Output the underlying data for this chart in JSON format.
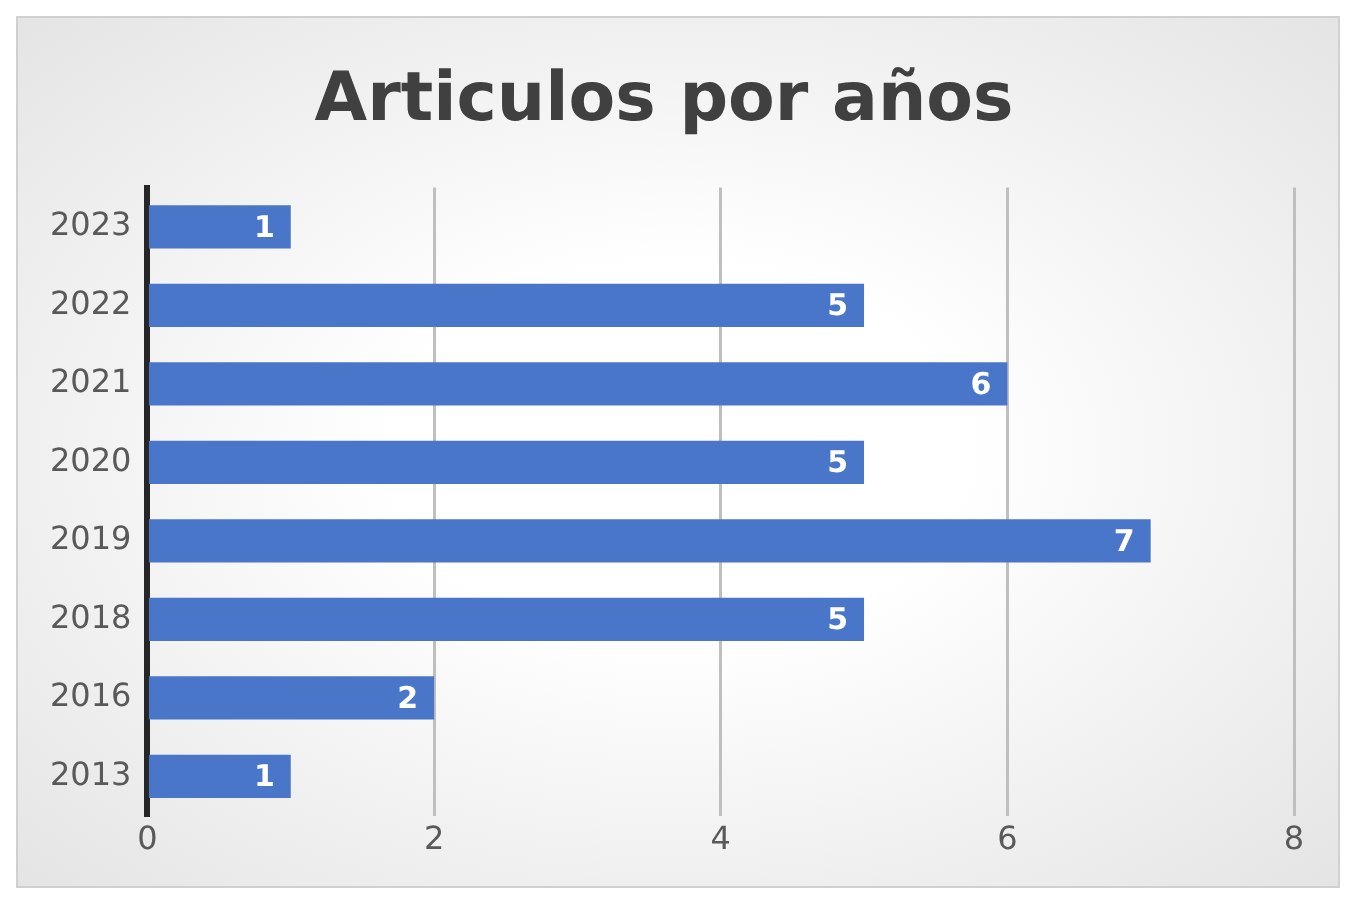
{
  "chart_data": {
    "type": "bar",
    "title": "Articulos por años",
    "orientation": "horizontal",
    "categories": [
      "2023",
      "2022",
      "2021",
      "2020",
      "2019",
      "2018",
      "2016",
      "2013"
    ],
    "values": [
      1,
      5,
      6,
      5,
      7,
      5,
      2,
      1
    ],
    "color": "#4a76c9",
    "xlim": [
      0,
      8
    ],
    "xticks": [
      0,
      2,
      4,
      6,
      8
    ],
    "grid": "x",
    "data_labels": true
  }
}
